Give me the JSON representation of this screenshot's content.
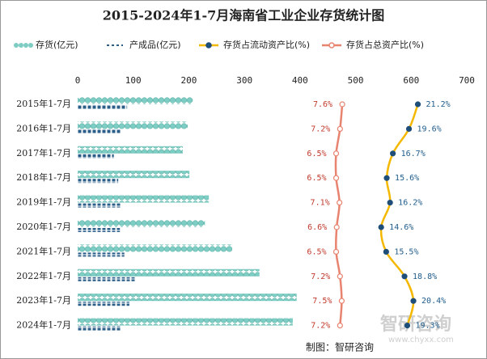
{
  "chart_data": {
    "type": "bar-line",
    "title": "2015-2024年1-7月海南省工业企业存货统计图",
    "categories": [
      "2015年1-7月",
      "2016年1-7月",
      "2017年1-7月",
      "2018年1-7月",
      "2019年1-7月",
      "2020年1-7月",
      "2021年1-7月",
      "2022年1-7月",
      "2023年1-7月",
      "2024年1-7月"
    ],
    "xlim": [
      0,
      700
    ],
    "xticks": [
      0,
      100,
      200,
      300,
      400,
      500,
      600,
      700
    ],
    "x2lim": [
      -40,
      30
    ],
    "series": [
      {
        "name": "存货(亿元)",
        "type": "bar",
        "color": "#7ecdc4",
        "values": [
          207,
          198,
          189,
          201,
          236,
          229,
          278,
          327,
          394,
          387
        ]
      },
      {
        "name": "产成品(亿元)",
        "type": "bar",
        "color": "#2b5f8a",
        "values": [
          89,
          79,
          65,
          73,
          79,
          76,
          84,
          103,
          93,
          79
        ]
      },
      {
        "name": "存货占流动资产比(%)",
        "type": "line",
        "axis": "x2",
        "color": "#f5b800",
        "marker_color": "#1f4e79",
        "label_color": "#1f5c8b",
        "values": [
          21.2,
          19.6,
          16.7,
          15.6,
          16.2,
          14.6,
          15.5,
          18.8,
          20.4,
          19.3
        ],
        "value_labels": [
          "21.2%",
          "19.6%",
          "16.7%",
          "15.6%",
          "16.2%",
          "14.6%",
          "15.5%",
          "18.8%",
          "20.4%",
          "19.3%"
        ]
      },
      {
        "name": "存货占总资产比(%)",
        "type": "line",
        "axis": "x2",
        "color": "#e8836f",
        "marker_color": "#ffffff",
        "label_color": "#c0392b",
        "values": [
          7.6,
          7.2,
          6.5,
          6.5,
          7.1,
          6.6,
          6.5,
          7.2,
          7.5,
          7.2
        ],
        "value_labels": [
          "7.6%",
          "7.2%",
          "6.5%",
          "6.5%",
          "7.1%",
          "6.6%",
          "6.5%",
          "7.2%",
          "7.5%",
          "7.2%"
        ]
      }
    ],
    "watermark": "智研咨询",
    "watermark_url": "www.chyxx.com",
    "source": "制图：智研咨询"
  }
}
